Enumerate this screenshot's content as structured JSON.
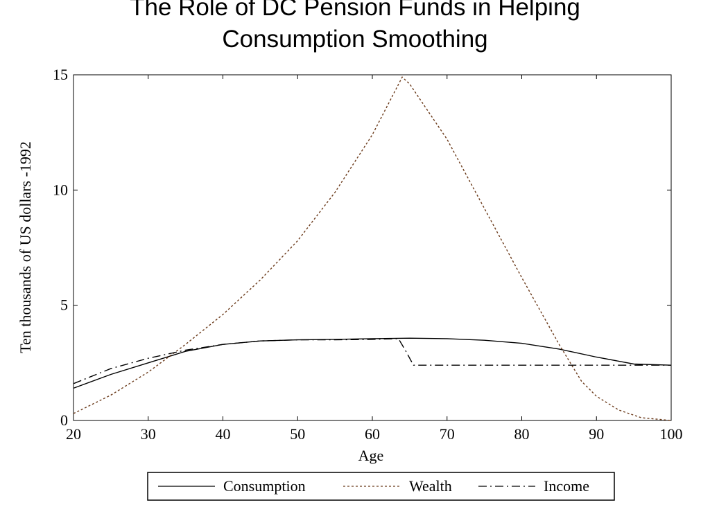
{
  "chart_data": {
    "type": "line",
    "title": [
      "The Role of DC Pension Funds in Helping",
      "Consumption Smoothing"
    ],
    "xlabel": "Age",
    "ylabel": "Ten thousands of US dollars -1992",
    "xlim": [
      20,
      100
    ],
    "ylim": [
      0,
      15
    ],
    "xticks": [
      "20",
      "30",
      "40",
      "50",
      "60",
      "70",
      "80",
      "90",
      "100"
    ],
    "yticks": [
      "0",
      "5",
      "10",
      "15"
    ],
    "grid": false,
    "legend_position": "bottom-center",
    "series": [
      {
        "name": "Consumption",
        "style": "solid",
        "color": "#000000",
        "x": [
          20,
          25,
          30,
          35,
          40,
          45,
          50,
          55,
          60,
          65,
          70,
          75,
          80,
          85,
          90,
          95,
          100
        ],
        "y": [
          1.4,
          2.0,
          2.5,
          3.0,
          3.3,
          3.45,
          3.5,
          3.52,
          3.55,
          3.57,
          3.55,
          3.48,
          3.35,
          3.1,
          2.75,
          2.45,
          2.4
        ]
      },
      {
        "name": "Wealth",
        "style": "dotted",
        "color": "#6b3a1a",
        "x": [
          20,
          25,
          30,
          35,
          40,
          45,
          50,
          55,
          60,
          64,
          65,
          70,
          75,
          80,
          85,
          88,
          90,
          93,
          96,
          100
        ],
        "y": [
          0.3,
          1.1,
          2.1,
          3.3,
          4.6,
          6.1,
          7.8,
          9.9,
          12.4,
          14.9,
          14.6,
          12.2,
          9.2,
          6.2,
          3.3,
          1.7,
          1.05,
          0.45,
          0.12,
          0.0
        ]
      },
      {
        "name": "Income",
        "style": "dashdot",
        "color": "#000000",
        "x": [
          20,
          25,
          30,
          35,
          40,
          45,
          50,
          55,
          60,
          63.5,
          64.5,
          65.5,
          70,
          80,
          90,
          100
        ],
        "y": [
          1.6,
          2.25,
          2.7,
          3.05,
          3.3,
          3.45,
          3.5,
          3.5,
          3.52,
          3.55,
          3.0,
          2.4,
          2.4,
          2.4,
          2.4,
          2.4
        ]
      }
    ]
  }
}
